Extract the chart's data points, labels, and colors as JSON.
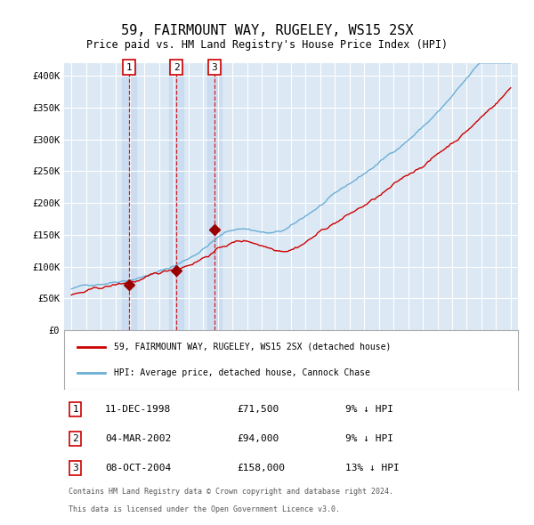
{
  "title": "59, FAIRMOUNT WAY, RUGELEY, WS15 2SX",
  "subtitle": "Price paid vs. HM Land Registry's House Price Index (HPI)",
  "legend_line1": "59, FAIRMOUNT WAY, RUGELEY, WS15 2SX (detached house)",
  "legend_line2": "HPI: Average price, detached house, Cannock Chase",
  "footer_line1": "Contains HM Land Registry data © Crown copyright and database right 2024.",
  "footer_line2": "This data is licensed under the Open Government Licence v3.0.",
  "sales": [
    {
      "num": 1,
      "date": "11-DEC-1998",
      "price": 71500,
      "pct": "9%",
      "dir": "↓",
      "x_year": 1998.94
    },
    {
      "num": 2,
      "date": "04-MAR-2002",
      "price": 94000,
      "pct": "9%",
      "dir": "↓",
      "x_year": 2002.17
    },
    {
      "num": 3,
      "date": "08-OCT-2004",
      "price": 158000,
      "pct": "13%",
      "dir": "↓",
      "x_year": 2004.77
    }
  ],
  "sale_marker_color": "#cc0000",
  "sale_vline_color": "#cc0000",
  "hpi_line_color": "#6baed6",
  "price_line_color": "#cc0000",
  "background_color": "#dce9f5",
  "plot_bg_color": "#dce9f5",
  "grid_color": "#ffffff",
  "ylim": [
    0,
    420000
  ],
  "yticks": [
    0,
    50000,
    100000,
    150000,
    200000,
    250000,
    300000,
    350000,
    400000
  ],
  "xlim_start": 1994.5,
  "xlim_end": 2025.5,
  "xtick_years": [
    1995,
    1996,
    1997,
    1998,
    1999,
    2000,
    2001,
    2002,
    2003,
    2004,
    2005,
    2006,
    2007,
    2008,
    2009,
    2010,
    2011,
    2012,
    2013,
    2014,
    2015,
    2016,
    2017,
    2018,
    2019,
    2020,
    2021,
    2022,
    2023,
    2024,
    2025
  ]
}
